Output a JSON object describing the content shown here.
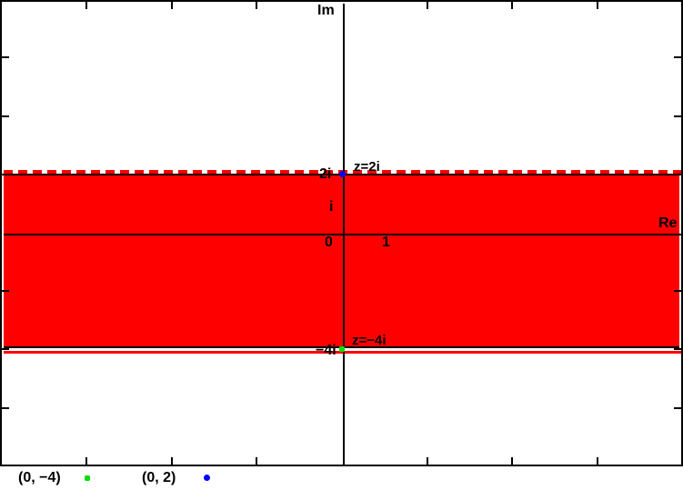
{
  "figure": {
    "background": "#ffffff",
    "axis_labels": {
      "horizontal": "Re",
      "vertical": "Im"
    },
    "tick_labels": {
      "origin": "0",
      "one": "1",
      "i": "i",
      "two_i": "2i",
      "neg_four_i": "−4i"
    },
    "annotations": {
      "top_boundary": "z=2i",
      "bottom_boundary": "z=−4i"
    },
    "colors": {
      "region_fill": "#ff0000",
      "boundary_line": "#ff0000",
      "axis": "#000000",
      "point_green": "#00dd00",
      "point_blue": "#0000ff"
    }
  },
  "legend": {
    "items": [
      {
        "label": "(0, −4)",
        "marker_color": "#00dd00",
        "marker_shape": "square"
      },
      {
        "label": "(0, 2)",
        "marker_color": "#0000ff",
        "marker_shape": "circle"
      }
    ]
  },
  "chart_data": {
    "type": "area",
    "description": "Complex plane with horizontal strip −4 ≤ Im(z) < 2 shaded red; dashed boundary at Im(z)=2 (excluded), solid boundary at Im(z)=−4 (included)",
    "region": {
      "im_min": -4,
      "im_max": 2,
      "im_min_included": true,
      "im_max_included": false,
      "fill_color": "#ff0000",
      "top_boundary_style": "dashed",
      "bottom_boundary_style": "solid",
      "outline_color": "#000000"
    },
    "points": [
      {
        "label": "(0, 2)",
        "re": 0,
        "im": 2,
        "color": "#0000ff",
        "shape": "circle"
      },
      {
        "label": "(0, −4)",
        "re": 0,
        "im": -4,
        "color": "#00dd00",
        "shape": "square"
      }
    ],
    "x_axis": {
      "label": "Re",
      "range": [
        -8,
        8
      ],
      "tick_values": [
        -6,
        -4,
        -2,
        2,
        4,
        6
      ],
      "labeled_ticks": [
        {
          "value": 0,
          "text": "0"
        },
        {
          "value": 1,
          "text": "1"
        }
      ]
    },
    "y_axis": {
      "label": "Im",
      "range": [
        -8,
        8
      ],
      "tick_values": [
        -6,
        -4,
        -2,
        2,
        4,
        6
      ],
      "labeled_ticks": [
        {
          "value": 1,
          "text": "i"
        },
        {
          "value": 2,
          "text": "2i"
        },
        {
          "value": -4,
          "text": "−4i"
        }
      ]
    },
    "annotations": [
      {
        "text": "z=2i",
        "at_im": 2
      },
      {
        "text": "z=−4i",
        "at_im": -4
      }
    ],
    "grid": false,
    "legend_position": "below-plot"
  }
}
